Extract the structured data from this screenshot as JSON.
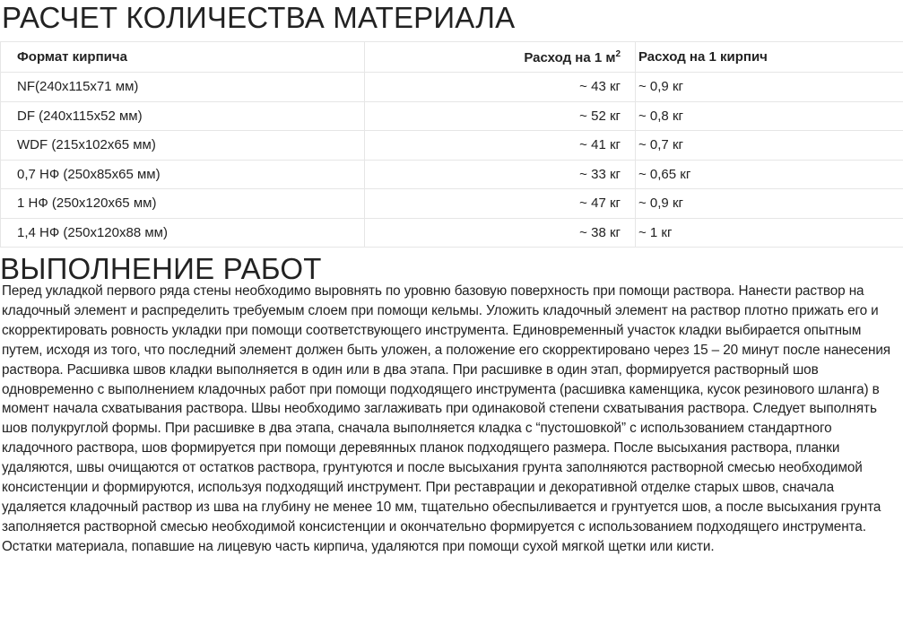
{
  "title": "РАСЧЕТ КОЛИЧЕСТВА МАТЕРИАЛА",
  "table": {
    "headers": {
      "format": "Формат кирпича",
      "per_m2": "Расход на 1 м",
      "per_m2_sup": "2",
      "per_brick": "Расход на 1 кирпич"
    },
    "rows": [
      {
        "format": "NF(240x115x71 мм)",
        "per_m2": "~ 43 кг",
        "per_brick": "~ 0,9 кг"
      },
      {
        "format": "DF (240x115x52 мм)",
        "per_m2": "~ 52 кг",
        "per_brick": "~ 0,8 кг"
      },
      {
        "format": "WDF (215x102x65 мм)",
        "per_m2": "~ 41 кг",
        "per_brick": "~ 0,7 кг"
      },
      {
        "format": "0,7 НФ (250x85x65 мм)",
        "per_m2": "~ 33 кг",
        "per_brick": "~ 0,65 кг"
      },
      {
        "format": "1 НФ (250x120x65 мм)",
        "per_m2": "~ 47 кг",
        "per_brick": "~ 0,9 кг"
      },
      {
        "format": "1,4 НФ (250x120x88 мм)",
        "per_m2": "~ 38 кг",
        "per_brick": "~ 1 кг"
      }
    ]
  },
  "section2": {
    "title": "ВЫПОЛНЕНИЕ РАБОТ",
    "text": "Перед укладкой первого ряда стены необходимо выровнять по уровню базовую поверхность при помощи раствора. Нанести раствор на кладочный элемент и распределить требуемым слоем при помощи кельмы. Уложить кладочный элемент на раствор плотно прижать его и скорректировать ровность укладки при помощи соответствующего инструмента. Единовременный участок кладки выбирается опытным путем, исходя из того, что последний элемент должен быть уложен, а положение его скорректировано через 15 – 20 минут после нанесения раствора. Расшивка швов кладки выполняется в один или в два этапа. При расшивке в один этап, формируется растворный шов одновременно с выполнением кладочных работ при помощи подходящего инструмента (расшивка каменщика, кусок резинового шланга) в момент начала схватывания раствора. Швы необходимо заглаживать при одинаковой степени схватывания раствора. Следует выполнять шов полукруглой формы. При расшивке в два этапа, сначала выполняется кладка с “пустошовкой” с использованием стандартного кладочного раствора, шов формируется при помощи деревянных планок подходящего размера. После высыхания раствора, планки удаляются, швы очищаются от остатков раствора, грунтуются и после высыхания грунта заполняются растворной смесью необходимой консистенции и формируются, используя подходящий инструмент. При реставрации и декоративной отделке старых швов, сначала удаляется кладочный раствор из шва на глубину не менее 10 мм, тщательно обеспыливается и грунтуется шов, а после высыхания грунта заполняется растворной смесью необходимой консистенции и окончательно формируется с использованием подходящего инструмента. Остатки материала, попавшие на лицевую часть кирпича, удаляются при помощи сухой мягкой щетки или кисти."
  }
}
